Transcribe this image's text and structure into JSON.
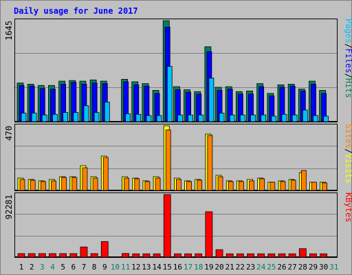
{
  "title": "Daily usage for June 2017",
  "colors": {
    "background": "#c0c0c0",
    "hits": "#00805c",
    "files": "#0000ff",
    "pages": "#00c0ff",
    "visits": "#ffff00",
    "sites": "#ff8000",
    "kbytes": "#ff0000",
    "title": "#0000ff",
    "weekend_label": "#00805c"
  },
  "chart_data": [
    {
      "type": "bar",
      "panel": "top",
      "x": [
        "1",
        "2",
        "3",
        "4",
        "5",
        "6",
        "7",
        "8",
        "9",
        "10",
        "11",
        "12",
        "13",
        "14",
        "15",
        "16",
        "17",
        "18",
        "19",
        "20",
        "21",
        "22",
        "23",
        "24",
        "25",
        "26",
        "27",
        "28",
        "29",
        "30",
        "31"
      ],
      "y_max_label": "1645",
      "y_max": 1645,
      "series_labels": [
        "Pages",
        "/",
        "Files",
        "/",
        "Hits"
      ],
      "series": [
        {
          "name": "Hits",
          "color": "#00805c",
          "values": [
            630,
            610,
            590,
            590,
            660,
            670,
            660,
            680,
            660,
            0,
            690,
            650,
            620,
            510,
            1645,
            570,
            520,
            490,
            1220,
            560,
            570,
            490,
            500,
            620,
            460,
            600,
            610,
            530,
            660,
            510,
            0
          ]
        },
        {
          "name": "Files",
          "color": "#0000ff",
          "values": [
            590,
            580,
            540,
            530,
            610,
            640,
            610,
            630,
            620,
            0,
            650,
            600,
            580,
            460,
            1540,
            520,
            480,
            450,
            1140,
            510,
            530,
            450,
            450,
            570,
            420,
            560,
            580,
            500,
            610,
            460,
            0
          ]
        },
        {
          "name": "Pages",
          "color": "#00c0ff",
          "values": [
            140,
            140,
            110,
            120,
            150,
            150,
            260,
            150,
            320,
            0,
            130,
            120,
            100,
            100,
            900,
            110,
            110,
            110,
            710,
            140,
            110,
            110,
            110,
            110,
            90,
            120,
            110,
            190,
            100,
            90,
            0
          ]
        }
      ]
    },
    {
      "type": "bar",
      "panel": "middle",
      "x": [
        "1",
        "2",
        "3",
        "4",
        "5",
        "6",
        "7",
        "8",
        "9",
        "10",
        "11",
        "12",
        "13",
        "14",
        "15",
        "16",
        "17",
        "18",
        "19",
        "20",
        "21",
        "22",
        "23",
        "24",
        "25",
        "26",
        "27",
        "28",
        "29",
        "30",
        "31"
      ],
      "y_max_label": "470",
      "y_max": 470,
      "series_labels": [
        "Sites",
        "/",
        "Visits"
      ],
      "series": [
        {
          "name": "Visits",
          "color": "#ffff00",
          "values": [
            90,
            80,
            70,
            80,
            100,
            100,
            180,
            100,
            250,
            0,
            100,
            90,
            70,
            100,
            470,
            90,
            70,
            80,
            410,
            110,
            70,
            70,
            80,
            90,
            60,
            70,
            80,
            130,
            60,
            60,
            0
          ]
        },
        {
          "name": "Sites",
          "color": "#ff8000",
          "values": [
            80,
            75,
            65,
            70,
            95,
            95,
            165,
            90,
            240,
            0,
            90,
            85,
            65,
            90,
            440,
            80,
            65,
            75,
            400,
            100,
            65,
            65,
            70,
            85,
            60,
            65,
            75,
            145,
            60,
            55,
            0
          ]
        }
      ]
    },
    {
      "type": "bar",
      "panel": "bottom",
      "x": [
        "1",
        "2",
        "3",
        "4",
        "5",
        "6",
        "7",
        "8",
        "9",
        "10",
        "11",
        "12",
        "13",
        "14",
        "15",
        "16",
        "17",
        "18",
        "19",
        "20",
        "21",
        "22",
        "23",
        "24",
        "25",
        "26",
        "27",
        "28",
        "29",
        "30",
        "31"
      ],
      "y_max_label": "92281",
      "y_max": 92281,
      "series_labels": [
        "KBytes"
      ],
      "series": [
        {
          "name": "KBytes",
          "color": "#ff0000",
          "values": [
            5200,
            5200,
            5200,
            5200,
            5200,
            5200,
            15000,
            5200,
            23000,
            0,
            5400,
            4900,
            4900,
            4900,
            92281,
            4900,
            4900,
            4900,
            67000,
            11000,
            4900,
            4900,
            4900,
            4900,
            4900,
            4900,
            4900,
            12500,
            4900,
            4900,
            0
          ]
        }
      ]
    }
  ],
  "x_axis": {
    "days": [
      "1",
      "2",
      "3",
      "4",
      "5",
      "6",
      "7",
      "8",
      "9",
      "10",
      "11",
      "12",
      "13",
      "14",
      "15",
      "16",
      "17",
      "18",
      "19",
      "20",
      "21",
      "22",
      "23",
      "24",
      "25",
      "26",
      "27",
      "28",
      "29",
      "30",
      "31"
    ],
    "weekend_days": [
      "3",
      "4",
      "10",
      "11",
      "17",
      "18",
      "24",
      "25",
      "31"
    ]
  }
}
